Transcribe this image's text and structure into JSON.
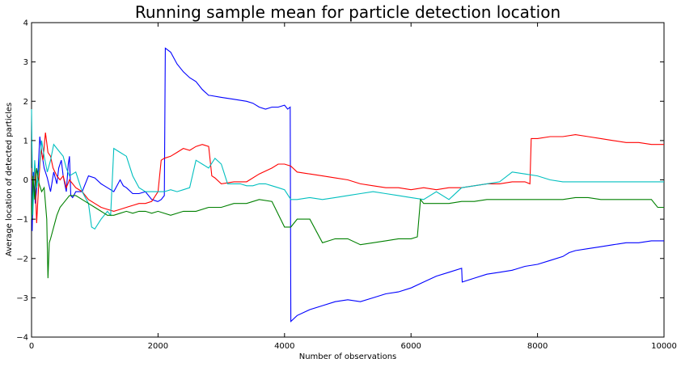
{
  "chart_data": {
    "type": "line",
    "title": "Running sample mean for particle detection location",
    "xlabel": "Number of observations",
    "ylabel": "Average location of detected particles",
    "xlim": [
      0,
      10000
    ],
    "ylim": [
      -4,
      4
    ],
    "x_ticks": [
      0,
      2000,
      4000,
      6000,
      8000,
      10000
    ],
    "y_ticks": [
      -4,
      -3,
      -2,
      -1,
      0,
      1,
      2,
      3,
      4
    ],
    "x_tick_labels": [
      "0",
      "2000",
      "4000",
      "6000",
      "8000",
      "10000"
    ],
    "y_tick_labels": [
      "−4",
      "−3",
      "−2",
      "−1",
      "0",
      "1",
      "2",
      "3",
      "4"
    ],
    "grid": false,
    "legend": "none",
    "series": [
      {
        "color": "#0000ff",
        "x": [
          0,
          10,
          30,
          60,
          100,
          130,
          160,
          200,
          250,
          300,
          350,
          400,
          430,
          470,
          500,
          550,
          580,
          600,
          620,
          650,
          700,
          800,
          900,
          1000,
          1100,
          1200,
          1300,
          1400,
          1450,
          1500,
          1600,
          1700,
          1800,
          1900,
          1990,
          2000,
          2050,
          2100,
          2115,
          2200,
          2300,
          2400,
          2500,
          2600,
          2700,
          2800,
          2820,
          3000,
          3200,
          3400,
          3500,
          3600,
          3700,
          3800,
          3900,
          4000,
          4050,
          4090,
          4100,
          4200,
          4400,
          4600,
          4800,
          5000,
          5200,
          5400,
          5600,
          5800,
          6000,
          6200,
          6400,
          6600,
          6800,
          6810,
          7000,
          7200,
          7400,
          7600,
          7800,
          8000,
          8200,
          8400,
          8500,
          8600,
          8800,
          9000,
          9200,
          9400,
          9600,
          9800,
          10000
        ],
        "y": [
          0.0,
          -1.3,
          0.2,
          -0.6,
          0.1,
          1.1,
          0.7,
          0.3,
          0.05,
          -0.3,
          0.2,
          -0.1,
          0.3,
          0.5,
          0.1,
          -0.3,
          0.4,
          0.6,
          -0.4,
          -0.45,
          -0.3,
          -0.3,
          0.1,
          0.05,
          -0.1,
          -0.2,
          -0.3,
          0.0,
          -0.15,
          -0.2,
          -0.35,
          -0.35,
          -0.3,
          -0.5,
          -0.55,
          -0.55,
          -0.5,
          -0.4,
          3.35,
          3.25,
          2.95,
          2.75,
          2.6,
          2.5,
          2.3,
          2.15,
          2.15,
          2.1,
          2.05,
          2.0,
          1.95,
          1.85,
          1.8,
          1.85,
          1.85,
          1.9,
          1.8,
          1.85,
          -3.6,
          -3.45,
          -3.3,
          -3.2,
          -3.1,
          -3.05,
          -3.1,
          -3.0,
          -2.9,
          -2.85,
          -2.75,
          -2.6,
          -2.45,
          -2.35,
          -2.25,
          -2.6,
          -2.5,
          -2.4,
          -2.35,
          -2.3,
          -2.2,
          -2.15,
          -2.05,
          -1.95,
          -1.85,
          -1.8,
          -1.75,
          -1.7,
          -1.65,
          -1.6,
          -1.6,
          -1.55,
          -1.55
        ]
      },
      {
        "color": "#ff0000",
        "x": [
          0,
          20,
          50,
          80,
          120,
          150,
          180,
          220,
          260,
          300,
          340,
          400,
          450,
          500,
          550,
          600,
          700,
          800,
          900,
          1000,
          1100,
          1200,
          1300,
          1400,
          1500,
          1600,
          1700,
          1800,
          1900,
          2000,
          2050,
          2100,
          2200,
          2300,
          2400,
          2500,
          2600,
          2700,
          2800,
          2850,
          2900,
          3000,
          3200,
          3400,
          3600,
          3800,
          3900,
          4000,
          4100,
          4200,
          4400,
          4600,
          4800,
          5000,
          5200,
          5400,
          5600,
          5800,
          6000,
          6200,
          6400,
          6600,
          6800,
          7000,
          7200,
          7400,
          7600,
          7800,
          7880,
          7900,
          8000,
          8200,
          8400,
          8600,
          8800,
          9000,
          9200,
          9400,
          9600,
          9800,
          10000
        ],
        "y": [
          0.3,
          -0.6,
          0.3,
          -1.1,
          0.1,
          0.8,
          0.5,
          1.2,
          0.7,
          0.6,
          0.3,
          0.1,
          0.0,
          0.1,
          -0.2,
          0.0,
          -0.2,
          -0.3,
          -0.5,
          -0.6,
          -0.7,
          -0.75,
          -0.8,
          -0.75,
          -0.7,
          -0.65,
          -0.6,
          -0.6,
          -0.55,
          -0.3,
          0.5,
          0.55,
          0.6,
          0.7,
          0.8,
          0.75,
          0.85,
          0.9,
          0.85,
          0.1,
          0.05,
          -0.1,
          -0.05,
          -0.05,
          0.15,
          0.3,
          0.4,
          0.4,
          0.35,
          0.2,
          0.15,
          0.1,
          0.05,
          0.0,
          -0.1,
          -0.15,
          -0.2,
          -0.2,
          -0.25,
          -0.2,
          -0.25,
          -0.2,
          -0.2,
          -0.15,
          -0.1,
          -0.1,
          -0.05,
          -0.05,
          -0.1,
          1.05,
          1.05,
          1.1,
          1.1,
          1.15,
          1.1,
          1.05,
          1.0,
          0.95,
          0.95,
          0.9,
          0.9
        ]
      },
      {
        "color": "#00bfbf",
        "x": [
          0,
          20,
          50,
          80,
          120,
          160,
          200,
          250,
          300,
          350,
          400,
          450,
          500,
          550,
          600,
          700,
          800,
          900,
          950,
          1000,
          1100,
          1200,
          1250,
          1300,
          1400,
          1500,
          1600,
          1700,
          1800,
          1900,
          2000,
          2100,
          2200,
          2300,
          2400,
          2500,
          2600,
          2700,
          2800,
          2900,
          3000,
          3100,
          3200,
          3300,
          3400,
          3500,
          3600,
          3700,
          3800,
          3900,
          4000,
          4100,
          4200,
          4400,
          4600,
          4800,
          5000,
          5200,
          5400,
          5600,
          5800,
          6000,
          6200,
          6400,
          6600,
          6800,
          7000,
          7200,
          7400,
          7600,
          7800,
          8000,
          8200,
          8400,
          8600,
          8800,
          9000,
          9200,
          9400,
          9600,
          9800,
          10000
        ],
        "y": [
          1.8,
          -0.9,
          0.5,
          -0.2,
          0.3,
          1.0,
          0.6,
          0.2,
          0.5,
          0.9,
          0.8,
          0.7,
          0.6,
          0.3,
          0.1,
          0.2,
          -0.3,
          -0.6,
          -1.2,
          -1.25,
          -1.0,
          -0.8,
          -0.9,
          0.8,
          0.7,
          0.6,
          0.1,
          -0.2,
          -0.3,
          -0.3,
          -0.3,
          -0.3,
          -0.25,
          -0.3,
          -0.25,
          -0.2,
          0.5,
          0.4,
          0.3,
          0.55,
          0.4,
          -0.1,
          -0.1,
          -0.1,
          -0.15,
          -0.15,
          -0.1,
          -0.1,
          -0.15,
          -0.2,
          -0.25,
          -0.5,
          -0.5,
          -0.45,
          -0.5,
          -0.45,
          -0.4,
          -0.35,
          -0.3,
          -0.35,
          -0.4,
          -0.45,
          -0.5,
          -0.3,
          -0.5,
          -0.2,
          -0.15,
          -0.1,
          -0.05,
          0.2,
          0.15,
          0.1,
          0.0,
          -0.05,
          -0.05,
          -0.05,
          -0.05,
          -0.05,
          -0.05,
          -0.05,
          -0.05,
          -0.05
        ]
      },
      {
        "color": "#008000",
        "x": [
          0,
          20,
          50,
          80,
          120,
          160,
          200,
          240,
          260,
          280,
          300,
          350,
          400,
          450,
          500,
          550,
          600,
          700,
          800,
          900,
          1000,
          1100,
          1200,
          1300,
          1400,
          1500,
          1600,
          1700,
          1800,
          1900,
          2000,
          2200,
          2400,
          2600,
          2800,
          3000,
          3200,
          3400,
          3600,
          3800,
          4000,
          4090,
          4100,
          4200,
          4400,
          4600,
          4700,
          4800,
          5000,
          5200,
          5400,
          5600,
          5800,
          6000,
          6100,
          6150,
          6200,
          6400,
          6600,
          6800,
          7000,
          7200,
          7400,
          7600,
          7800,
          8000,
          8200,
          8400,
          8600,
          8800,
          9000,
          9200,
          9400,
          9600,
          9800,
          9900,
          10000
        ],
        "y": [
          -1.0,
          0.1,
          -0.5,
          0.3,
          -0.1,
          -0.3,
          -0.2,
          -1.0,
          -2.5,
          -1.6,
          -1.5,
          -1.2,
          -0.9,
          -0.7,
          -0.6,
          -0.5,
          -0.4,
          -0.4,
          -0.5,
          -0.6,
          -0.7,
          -0.8,
          -0.9,
          -0.9,
          -0.85,
          -0.8,
          -0.85,
          -0.8,
          -0.8,
          -0.85,
          -0.8,
          -0.9,
          -0.8,
          -0.8,
          -0.7,
          -0.7,
          -0.6,
          -0.6,
          -0.5,
          -0.55,
          -1.2,
          -1.2,
          -1.2,
          -1.0,
          -1.0,
          -1.6,
          -1.55,
          -1.5,
          -1.5,
          -1.65,
          -1.6,
          -1.55,
          -1.5,
          -1.5,
          -1.45,
          -0.5,
          -0.6,
          -0.6,
          -0.6,
          -0.55,
          -0.55,
          -0.5,
          -0.5,
          -0.5,
          -0.5,
          -0.5,
          -0.5,
          -0.5,
          -0.45,
          -0.45,
          -0.5,
          -0.5,
          -0.5,
          -0.5,
          -0.5,
          -0.7,
          -0.7
        ]
      }
    ]
  }
}
